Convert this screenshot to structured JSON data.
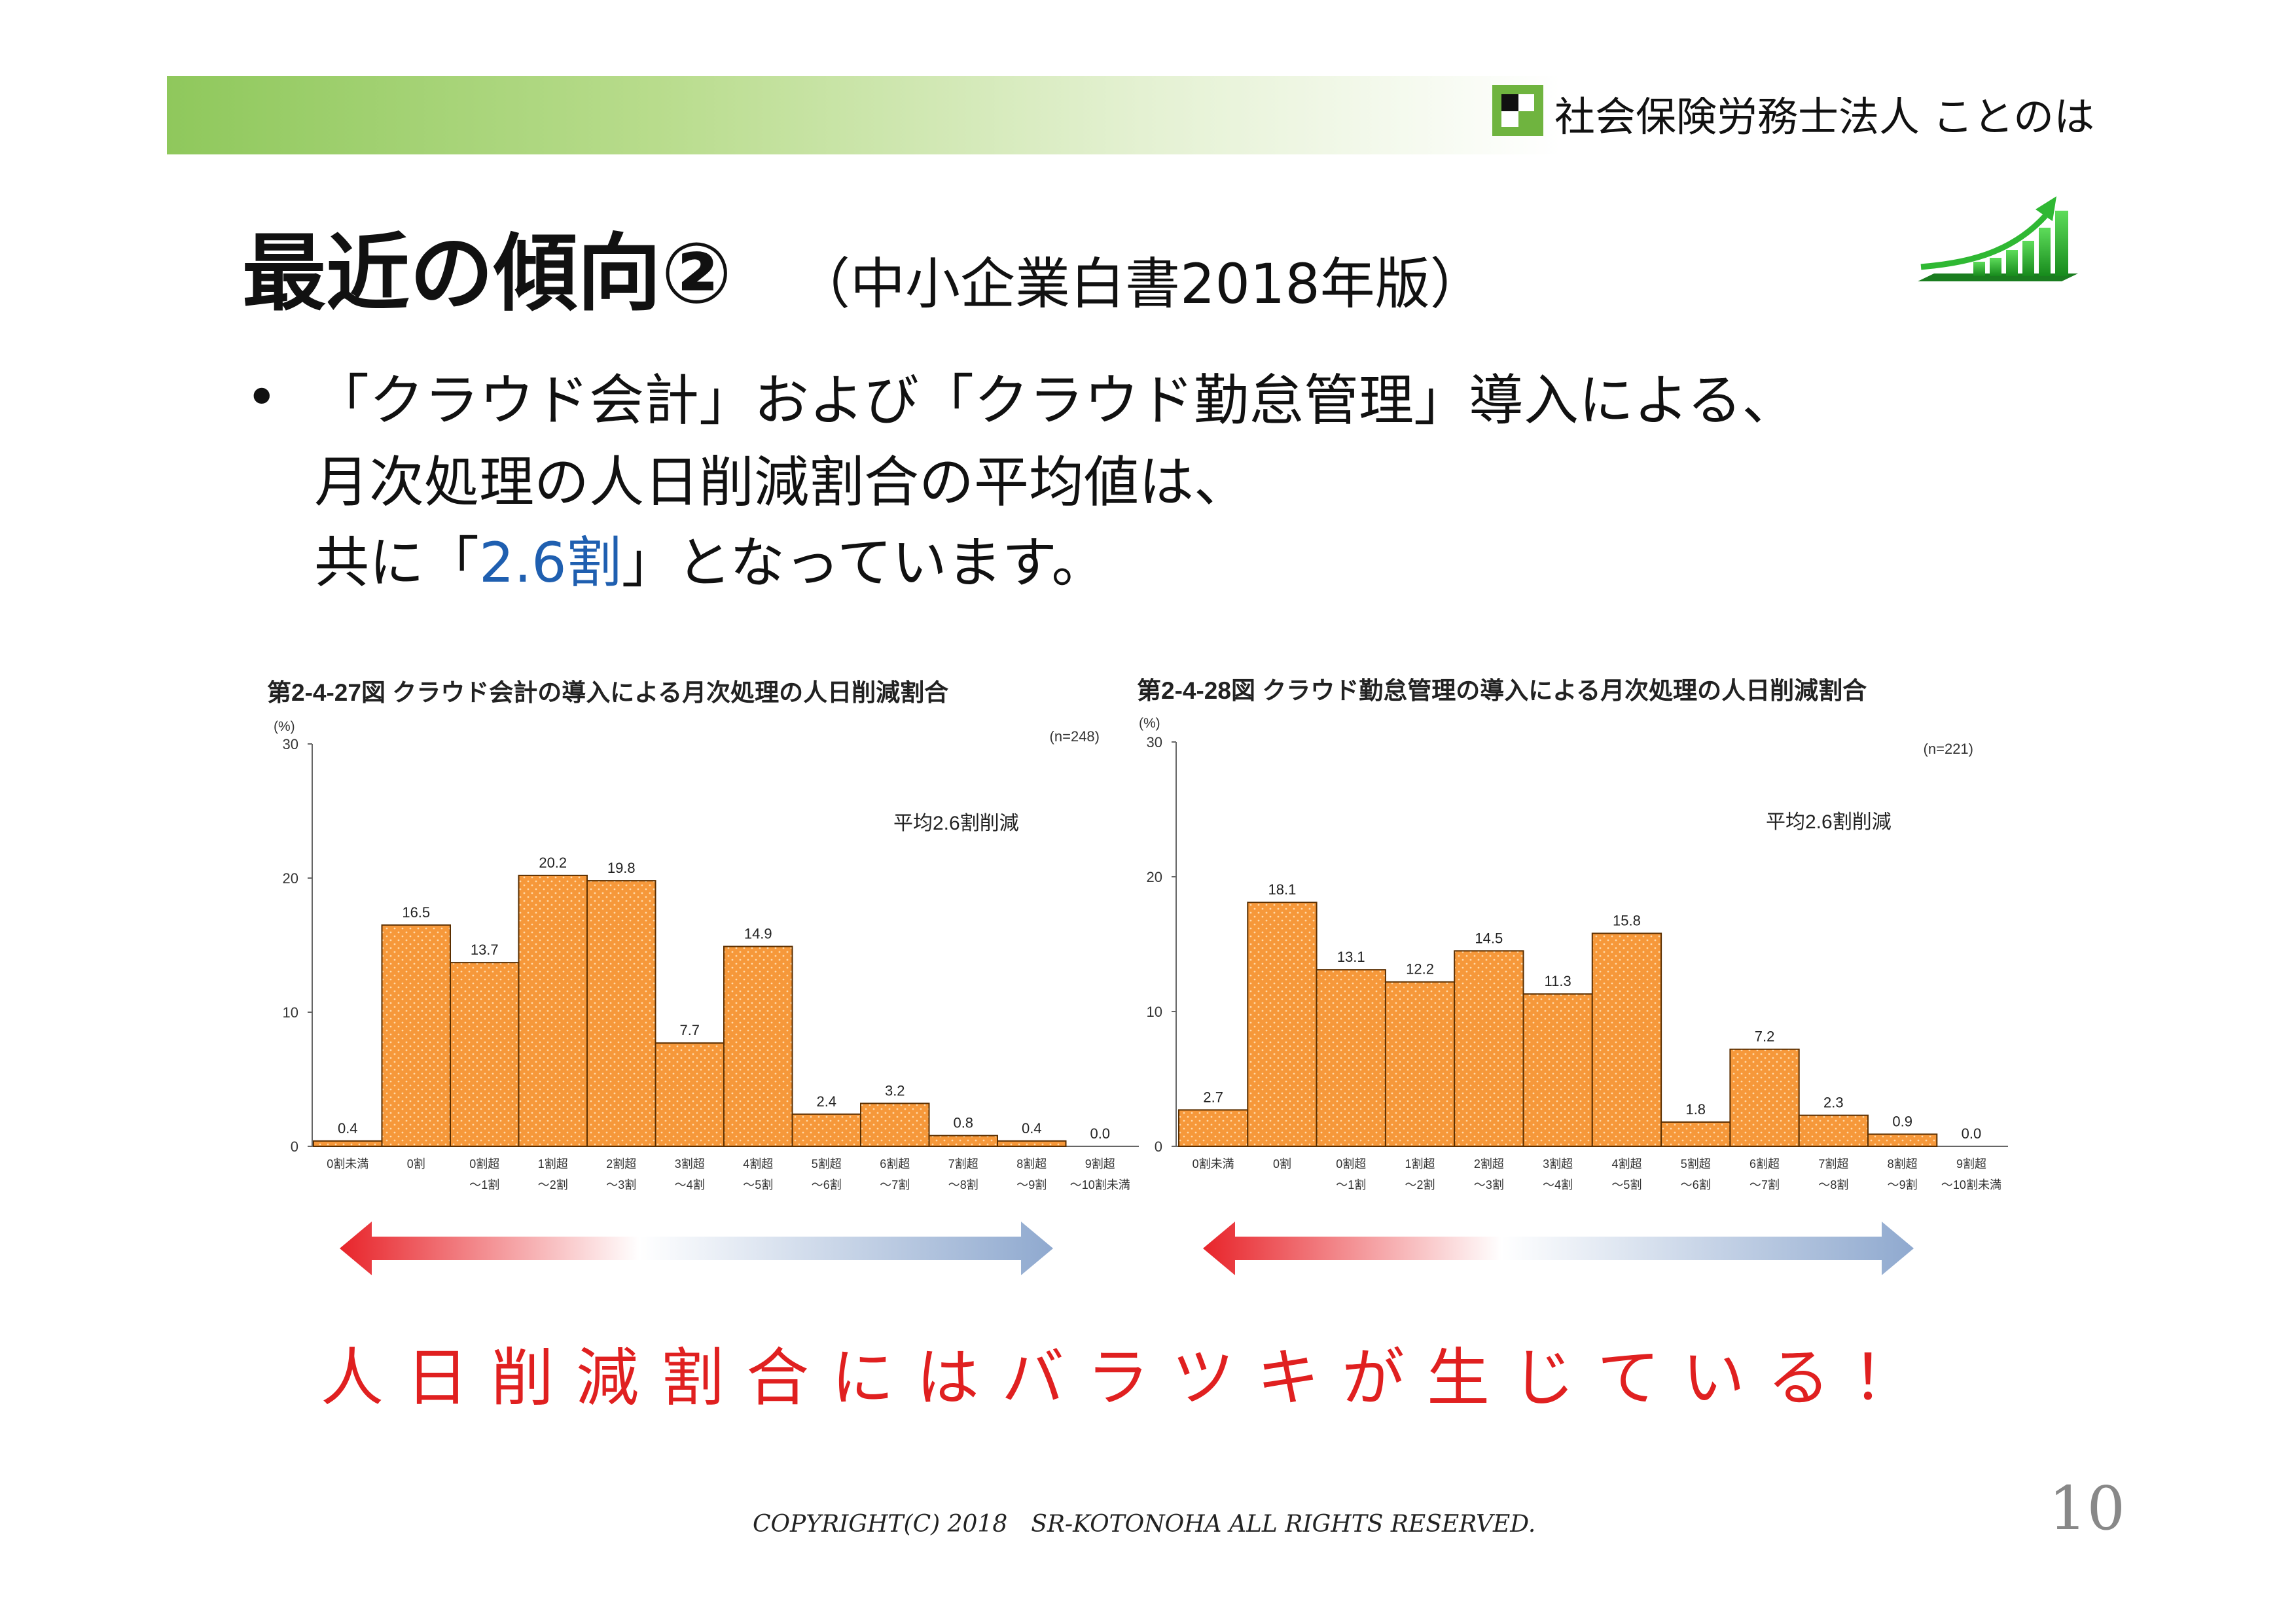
{
  "header": {
    "company": "社会保険労務士法人 ことのは"
  },
  "slide": {
    "title": "最近の傾向②",
    "subtitle": "（中小企業白書2018年版）",
    "bullet_mark": "•",
    "bullet_line1": "「クラウド会計」および「クラウド勤怠管理」導入による、",
    "bullet_line2": "月次処理の人日削減割合の平均値は、",
    "bullet_line3_pre": "共に「",
    "bullet_line3_highlight": "2.6割",
    "bullet_line3_post": "」となっています。",
    "tagline": "人日削減割合にはバラツキが生じている！"
  },
  "footer": {
    "copyright": "COPYRIGHT(C) 2018　SR-KOTONOHA ALL RIGHTS RESERVED.",
    "page_number": "10"
  },
  "colors": {
    "bar": "#f6983a",
    "bar_edge": "#5a2e00",
    "highlight": "#1f5fb0",
    "tagline": "#e02020",
    "arrow_left": "#e8242a",
    "arrow_right": "#8fa9cf"
  },
  "chart_data": [
    {
      "type": "bar",
      "title": "第2-4-27図 クラウド会計の導入による月次処理の人日削減割合",
      "ylabel": "(%)",
      "n_label": "(n=248)",
      "annotation": "平均2.6割削減",
      "ylim": [
        0,
        30
      ],
      "yticks": [
        "0",
        "10",
        "20",
        "30"
      ],
      "categories": [
        [
          "0割未満"
        ],
        [
          "0割"
        ],
        [
          "0割超",
          "～1割"
        ],
        [
          "1割超",
          "～2割"
        ],
        [
          "2割超",
          "～3割"
        ],
        [
          "3割超",
          "～4割"
        ],
        [
          "4割超",
          "～5割"
        ],
        [
          "5割超",
          "～6割"
        ],
        [
          "6割超",
          "～7割"
        ],
        [
          "7割超",
          "～8割"
        ],
        [
          "8割超",
          "～9割"
        ],
        [
          "9割超",
          "～10割未満"
        ]
      ],
      "values": [
        0.4,
        16.5,
        13.7,
        20.2,
        19.8,
        7.7,
        14.9,
        2.4,
        3.2,
        0.8,
        0.4,
        0.0
      ],
      "value_labels": [
        "0.4",
        "16.5",
        "13.7",
        "20.2",
        "19.8",
        "7.7",
        "14.9",
        "2.4",
        "3.2",
        "0.8",
        "0.4",
        "0.0"
      ]
    },
    {
      "type": "bar",
      "title": "第2-4-28図 クラウド勤怠管理の導入による月次処理の人日削減割合",
      "ylabel": "(%)",
      "n_label": "(n=221)",
      "annotation": "平均2.6割削減",
      "ylim": [
        0,
        30
      ],
      "yticks": [
        "0",
        "10",
        "20",
        "30"
      ],
      "categories": [
        [
          "0割未満"
        ],
        [
          "0割"
        ],
        [
          "0割超",
          "～1割"
        ],
        [
          "1割超",
          "～2割"
        ],
        [
          "2割超",
          "～3割"
        ],
        [
          "3割超",
          "～4割"
        ],
        [
          "4割超",
          "～5割"
        ],
        [
          "5割超",
          "～6割"
        ],
        [
          "6割超",
          "～7割"
        ],
        [
          "7割超",
          "～8割"
        ],
        [
          "8割超",
          "～9割"
        ],
        [
          "9割超",
          "～10割未満"
        ]
      ],
      "values": [
        2.7,
        18.1,
        13.1,
        12.2,
        14.5,
        11.3,
        15.8,
        1.8,
        7.2,
        2.3,
        0.9,
        0.0
      ],
      "value_labels": [
        "2.7",
        "18.1",
        "13.1",
        "12.2",
        "14.5",
        "11.3",
        "15.8",
        "1.8",
        "7.2",
        "2.3",
        "0.9",
        "0.0"
      ]
    }
  ]
}
